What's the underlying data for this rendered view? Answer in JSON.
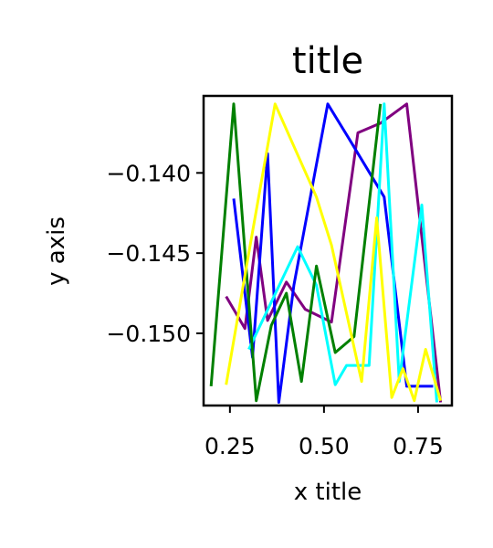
{
  "chart_data": {
    "type": "line",
    "title": "title",
    "xlabel": "x title",
    "ylabel": "y axis",
    "xlim": [
      0.18,
      0.84
    ],
    "ylim": [
      -0.1545,
      -0.1352
    ],
    "xticks": [
      0.25,
      0.5,
      0.75
    ],
    "xtick_labels": [
      "0.25",
      "0.50",
      "0.75"
    ],
    "yticks": [
      -0.14,
      -0.145,
      -0.15
    ],
    "ytick_labels": [
      "−0.140",
      "−0.145",
      "−0.150"
    ],
    "grid": false,
    "legend": false,
    "series": [
      {
        "color": "#800080",
        "x": [
          0.24,
          0.29,
          0.32,
          0.35,
          0.4,
          0.45,
          0.52,
          0.59,
          0.65,
          0.72,
          0.81
        ],
        "y": [
          -0.1477,
          -0.1497,
          -0.144,
          -0.1492,
          -0.1468,
          -0.1485,
          -0.1493,
          -0.1375,
          -0.1369,
          -0.1357,
          -0.1543
        ]
      },
      {
        "color": "#0000ff",
        "x": [
          0.26,
          0.31,
          0.35,
          0.38,
          0.42,
          0.51,
          0.57,
          0.66,
          0.72,
          0.79
        ],
        "y": [
          -0.1416,
          -0.1515,
          -0.1388,
          -0.1543,
          -0.147,
          -0.1357,
          -0.138,
          -0.1415,
          -0.1533,
          -0.1533
        ]
      },
      {
        "color": "#00ffff",
        "x": [
          0.3,
          0.43,
          0.48,
          0.53,
          0.56,
          0.62,
          0.66,
          0.7,
          0.76,
          0.8
        ],
        "y": [
          -0.151,
          -0.1446,
          -0.147,
          -0.1532,
          -0.152,
          -0.152,
          -0.1357,
          -0.153,
          -0.142,
          -0.1543
        ]
      },
      {
        "color": "#008000",
        "x": [
          0.2,
          0.26,
          0.32,
          0.36,
          0.4,
          0.44,
          0.48,
          0.53,
          0.58,
          0.65
        ],
        "y": [
          -0.1533,
          -0.1357,
          -0.1542,
          -0.1495,
          -0.1475,
          -0.153,
          -0.1458,
          -0.1512,
          -0.1502,
          -0.1357
        ]
      },
      {
        "color": "#ffff00",
        "x": [
          0.24,
          0.3,
          0.37,
          0.48,
          0.52,
          0.6,
          0.64,
          0.68,
          0.71,
          0.74,
          0.77,
          0.81
        ],
        "y": [
          -0.1532,
          -0.145,
          -0.1357,
          -0.1415,
          -0.1445,
          -0.153,
          -0.1428,
          -0.154,
          -0.1522,
          -0.1542,
          -0.151,
          -0.1542
        ]
      }
    ]
  }
}
